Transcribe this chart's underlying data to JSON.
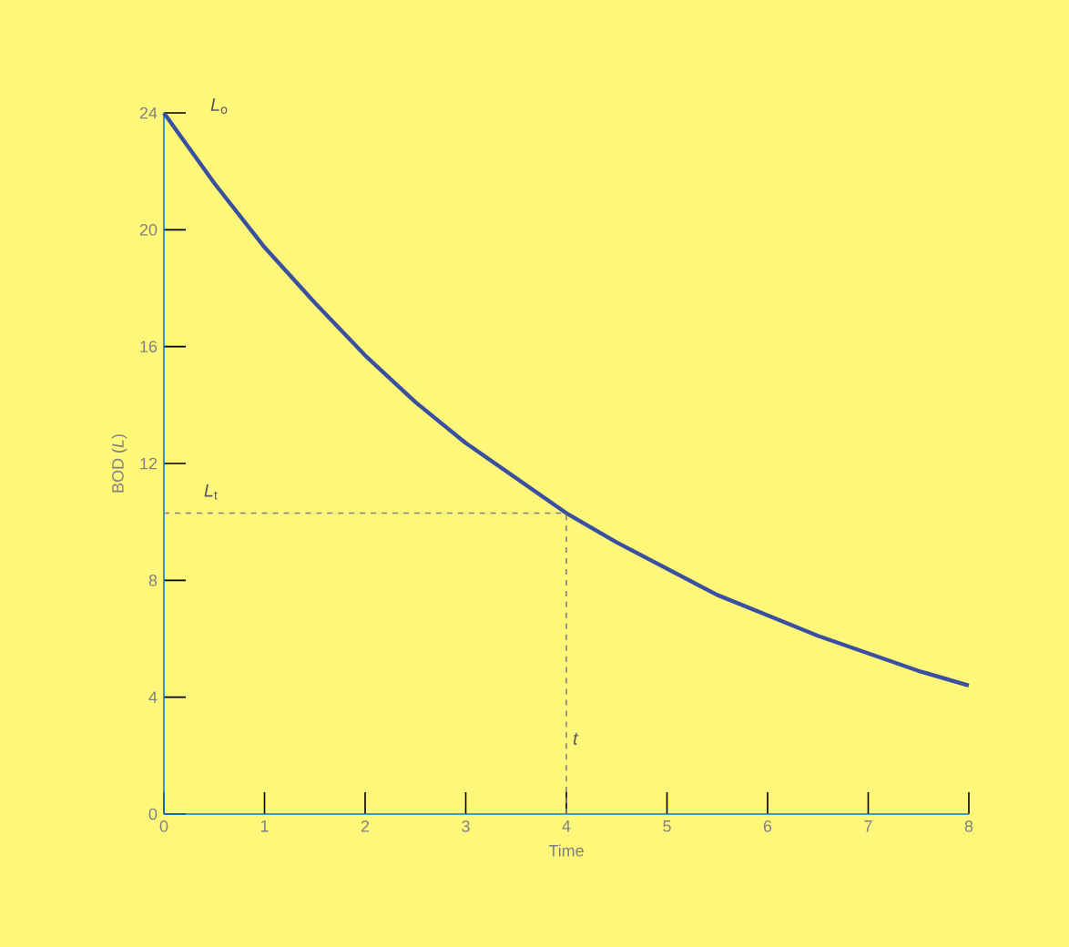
{
  "chart_data": {
    "type": "line",
    "xlabel": "Time",
    "ylabel": "BOD (*L*)",
    "x": [
      0,
      0.5,
      1,
      1.5,
      2,
      2.5,
      3,
      3.5,
      4,
      4.5,
      5,
      5.5,
      6,
      6.5,
      7,
      7.5,
      8
    ],
    "series": [
      {
        "color": "#3a4fa0",
        "values": [
          24,
          21.6,
          19.4,
          17.5,
          15.7,
          14.1,
          12.7,
          11.5,
          10.3,
          9.3,
          8.4,
          7.5,
          6.8,
          6.1,
          5.5,
          4.9,
          4.4
        ]
      }
    ],
    "xlim": [
      0,
      8
    ],
    "ylim": [
      0,
      24
    ],
    "xticks": [
      0,
      1,
      2,
      3,
      4,
      5,
      6,
      7,
      8
    ],
    "yticks": [
      0,
      4,
      8,
      12,
      16,
      20,
      24
    ],
    "ref_lines": [
      {
        "axis": "y",
        "value": 10.3,
        "label": "*L*$_{t}$",
        "line_style": "dashed"
      },
      {
        "axis": "x",
        "value": 4,
        "label": "*t*",
        "line_style": "dashed"
      }
    ],
    "annotations": [
      {
        "text": "*L*$_{o}$",
        "x": 0,
        "y": 24
      }
    ],
    "grid": false,
    "marker": "none",
    "line_style": "solid"
  }
}
